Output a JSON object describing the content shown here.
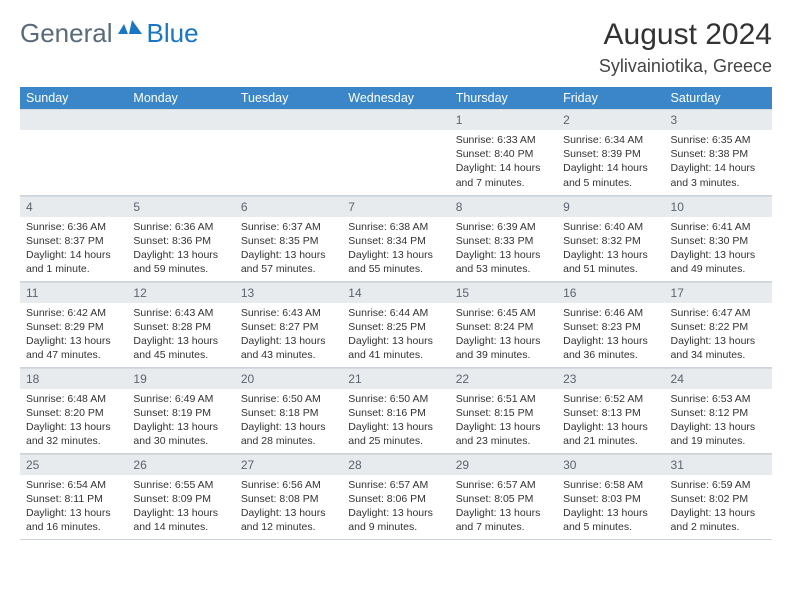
{
  "logo": {
    "general": "General",
    "blue": "Blue"
  },
  "title": "August 2024",
  "location": "Sylivainiotika, Greece",
  "colors": {
    "header_bg": "#3a86c8",
    "header_text": "#ffffff",
    "daynum_bg": "#e8ebee",
    "daynum_text": "#5a6470",
    "body_text": "#333333",
    "border": "#ccd3da",
    "logo_general": "#5a6a7a",
    "logo_blue": "#1976c5"
  },
  "weekdays": [
    "Sunday",
    "Monday",
    "Tuesday",
    "Wednesday",
    "Thursday",
    "Friday",
    "Saturday"
  ],
  "weeks": [
    [
      null,
      null,
      null,
      null,
      {
        "d": "1",
        "sr": "Sunrise: 6:33 AM",
        "ss": "Sunset: 8:40 PM",
        "dl1": "Daylight: 14 hours",
        "dl2": "and 7 minutes."
      },
      {
        "d": "2",
        "sr": "Sunrise: 6:34 AM",
        "ss": "Sunset: 8:39 PM",
        "dl1": "Daylight: 14 hours",
        "dl2": "and 5 minutes."
      },
      {
        "d": "3",
        "sr": "Sunrise: 6:35 AM",
        "ss": "Sunset: 8:38 PM",
        "dl1": "Daylight: 14 hours",
        "dl2": "and 3 minutes."
      }
    ],
    [
      {
        "d": "4",
        "sr": "Sunrise: 6:36 AM",
        "ss": "Sunset: 8:37 PM",
        "dl1": "Daylight: 14 hours",
        "dl2": "and 1 minute."
      },
      {
        "d": "5",
        "sr": "Sunrise: 6:36 AM",
        "ss": "Sunset: 8:36 PM",
        "dl1": "Daylight: 13 hours",
        "dl2": "and 59 minutes."
      },
      {
        "d": "6",
        "sr": "Sunrise: 6:37 AM",
        "ss": "Sunset: 8:35 PM",
        "dl1": "Daylight: 13 hours",
        "dl2": "and 57 minutes."
      },
      {
        "d": "7",
        "sr": "Sunrise: 6:38 AM",
        "ss": "Sunset: 8:34 PM",
        "dl1": "Daylight: 13 hours",
        "dl2": "and 55 minutes."
      },
      {
        "d": "8",
        "sr": "Sunrise: 6:39 AM",
        "ss": "Sunset: 8:33 PM",
        "dl1": "Daylight: 13 hours",
        "dl2": "and 53 minutes."
      },
      {
        "d": "9",
        "sr": "Sunrise: 6:40 AM",
        "ss": "Sunset: 8:32 PM",
        "dl1": "Daylight: 13 hours",
        "dl2": "and 51 minutes."
      },
      {
        "d": "10",
        "sr": "Sunrise: 6:41 AM",
        "ss": "Sunset: 8:30 PM",
        "dl1": "Daylight: 13 hours",
        "dl2": "and 49 minutes."
      }
    ],
    [
      {
        "d": "11",
        "sr": "Sunrise: 6:42 AM",
        "ss": "Sunset: 8:29 PM",
        "dl1": "Daylight: 13 hours",
        "dl2": "and 47 minutes."
      },
      {
        "d": "12",
        "sr": "Sunrise: 6:43 AM",
        "ss": "Sunset: 8:28 PM",
        "dl1": "Daylight: 13 hours",
        "dl2": "and 45 minutes."
      },
      {
        "d": "13",
        "sr": "Sunrise: 6:43 AM",
        "ss": "Sunset: 8:27 PM",
        "dl1": "Daylight: 13 hours",
        "dl2": "and 43 minutes."
      },
      {
        "d": "14",
        "sr": "Sunrise: 6:44 AM",
        "ss": "Sunset: 8:25 PM",
        "dl1": "Daylight: 13 hours",
        "dl2": "and 41 minutes."
      },
      {
        "d": "15",
        "sr": "Sunrise: 6:45 AM",
        "ss": "Sunset: 8:24 PM",
        "dl1": "Daylight: 13 hours",
        "dl2": "and 39 minutes."
      },
      {
        "d": "16",
        "sr": "Sunrise: 6:46 AM",
        "ss": "Sunset: 8:23 PM",
        "dl1": "Daylight: 13 hours",
        "dl2": "and 36 minutes."
      },
      {
        "d": "17",
        "sr": "Sunrise: 6:47 AM",
        "ss": "Sunset: 8:22 PM",
        "dl1": "Daylight: 13 hours",
        "dl2": "and 34 minutes."
      }
    ],
    [
      {
        "d": "18",
        "sr": "Sunrise: 6:48 AM",
        "ss": "Sunset: 8:20 PM",
        "dl1": "Daylight: 13 hours",
        "dl2": "and 32 minutes."
      },
      {
        "d": "19",
        "sr": "Sunrise: 6:49 AM",
        "ss": "Sunset: 8:19 PM",
        "dl1": "Daylight: 13 hours",
        "dl2": "and 30 minutes."
      },
      {
        "d": "20",
        "sr": "Sunrise: 6:50 AM",
        "ss": "Sunset: 8:18 PM",
        "dl1": "Daylight: 13 hours",
        "dl2": "and 28 minutes."
      },
      {
        "d": "21",
        "sr": "Sunrise: 6:50 AM",
        "ss": "Sunset: 8:16 PM",
        "dl1": "Daylight: 13 hours",
        "dl2": "and 25 minutes."
      },
      {
        "d": "22",
        "sr": "Sunrise: 6:51 AM",
        "ss": "Sunset: 8:15 PM",
        "dl1": "Daylight: 13 hours",
        "dl2": "and 23 minutes."
      },
      {
        "d": "23",
        "sr": "Sunrise: 6:52 AM",
        "ss": "Sunset: 8:13 PM",
        "dl1": "Daylight: 13 hours",
        "dl2": "and 21 minutes."
      },
      {
        "d": "24",
        "sr": "Sunrise: 6:53 AM",
        "ss": "Sunset: 8:12 PM",
        "dl1": "Daylight: 13 hours",
        "dl2": "and 19 minutes."
      }
    ],
    [
      {
        "d": "25",
        "sr": "Sunrise: 6:54 AM",
        "ss": "Sunset: 8:11 PM",
        "dl1": "Daylight: 13 hours",
        "dl2": "and 16 minutes."
      },
      {
        "d": "26",
        "sr": "Sunrise: 6:55 AM",
        "ss": "Sunset: 8:09 PM",
        "dl1": "Daylight: 13 hours",
        "dl2": "and 14 minutes."
      },
      {
        "d": "27",
        "sr": "Sunrise: 6:56 AM",
        "ss": "Sunset: 8:08 PM",
        "dl1": "Daylight: 13 hours",
        "dl2": "and 12 minutes."
      },
      {
        "d": "28",
        "sr": "Sunrise: 6:57 AM",
        "ss": "Sunset: 8:06 PM",
        "dl1": "Daylight: 13 hours",
        "dl2": "and 9 minutes."
      },
      {
        "d": "29",
        "sr": "Sunrise: 6:57 AM",
        "ss": "Sunset: 8:05 PM",
        "dl1": "Daylight: 13 hours",
        "dl2": "and 7 minutes."
      },
      {
        "d": "30",
        "sr": "Sunrise: 6:58 AM",
        "ss": "Sunset: 8:03 PM",
        "dl1": "Daylight: 13 hours",
        "dl2": "and 5 minutes."
      },
      {
        "d": "31",
        "sr": "Sunrise: 6:59 AM",
        "ss": "Sunset: 8:02 PM",
        "dl1": "Daylight: 13 hours",
        "dl2": "and 2 minutes."
      }
    ]
  ]
}
